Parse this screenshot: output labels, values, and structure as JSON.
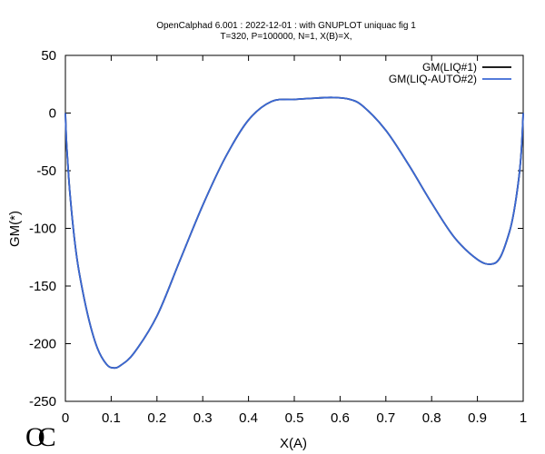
{
  "chart_data": {
    "type": "line",
    "title": {
      "line1": "OpenCalphad   6.001 :  2022-12-01 : with GNUPLOT uniquac fig 1",
      "line2": "T=320, P=100000, N=1, X(B)=X,"
    },
    "xlabel": "X(A)",
    "ylabel": "GM(*)",
    "xlim": [
      0,
      1
    ],
    "ylim": [
      -250,
      50
    ],
    "x_ticks": [
      "0",
      "0.1",
      "0.2",
      "0.3",
      "0.4",
      "0.5",
      "0.6",
      "0.7",
      "0.8",
      "0.9",
      "1"
    ],
    "y_ticks": [
      "50",
      "0",
      "-50",
      "-100",
      "-150",
      "-200",
      "-250"
    ],
    "x_tick_values": [
      0,
      0.1,
      0.2,
      0.3,
      0.4,
      0.5,
      0.6,
      0.7,
      0.8,
      0.9,
      1
    ],
    "y_tick_values": [
      50,
      0,
      -50,
      -100,
      -150,
      -200,
      -250
    ],
    "grid": false,
    "legend_position": "top-right",
    "series": [
      {
        "name": "GM(LIQ#1)",
        "color": "#000000",
        "x": [
          0,
          0.002,
          0.005,
          0.01,
          0.02,
          0.03,
          0.05,
          0.07,
          0.09,
          0.105,
          0.12,
          0.15,
          0.2,
          0.25,
          0.3,
          0.35,
          0.4,
          0.45,
          0.5,
          0.55,
          0.585,
          0.62,
          0.65,
          0.7,
          0.75,
          0.8,
          0.85,
          0.9,
          0.93,
          0.95,
          0.97,
          0.98,
          0.99,
          0.995,
          0.998,
          1
        ],
        "y": [
          0,
          -22,
          -42,
          -70,
          -110,
          -138,
          -177,
          -204,
          -218,
          -221,
          -219,
          -208,
          -176,
          -128,
          -80,
          -38,
          -6,
          10,
          11.8,
          13,
          13.5,
          12,
          6,
          -15,
          -45,
          -78,
          -108,
          -127,
          -131,
          -125,
          -103,
          -85,
          -58,
          -38,
          -18,
          0
        ]
      },
      {
        "name": "GM(LIQ-AUTO#2)",
        "color": "#3b68d4",
        "x": [
          0,
          0.002,
          0.005,
          0.01,
          0.02,
          0.03,
          0.05,
          0.07,
          0.09,
          0.105,
          0.12,
          0.15,
          0.2,
          0.25,
          0.3,
          0.35,
          0.4,
          0.45,
          0.5,
          0.55,
          0.585,
          0.62,
          0.65,
          0.7,
          0.75,
          0.8,
          0.85,
          0.9,
          0.93,
          0.95,
          0.97,
          0.98,
          0.99,
          0.995,
          0.998,
          1
        ],
        "y": [
          0,
          -22,
          -42,
          -70,
          -110,
          -138,
          -177,
          -204,
          -218,
          -221,
          -219,
          -208,
          -176,
          -128,
          -80,
          -38,
          -6,
          10,
          11.8,
          13,
          13.5,
          12,
          6,
          -15,
          -45,
          -78,
          -108,
          -127,
          -131,
          -125,
          -103,
          -85,
          -58,
          -38,
          -18,
          0
        ]
      }
    ]
  },
  "logo": {
    "text": "OC"
  }
}
